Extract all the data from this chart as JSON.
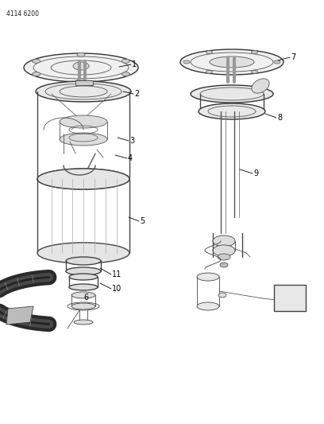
{
  "title_code": "4114 6200",
  "background_color": "#ffffff",
  "line_color": "#1a1a1a",
  "fig_width": 4.08,
  "fig_height": 5.33,
  "dpi": 100
}
